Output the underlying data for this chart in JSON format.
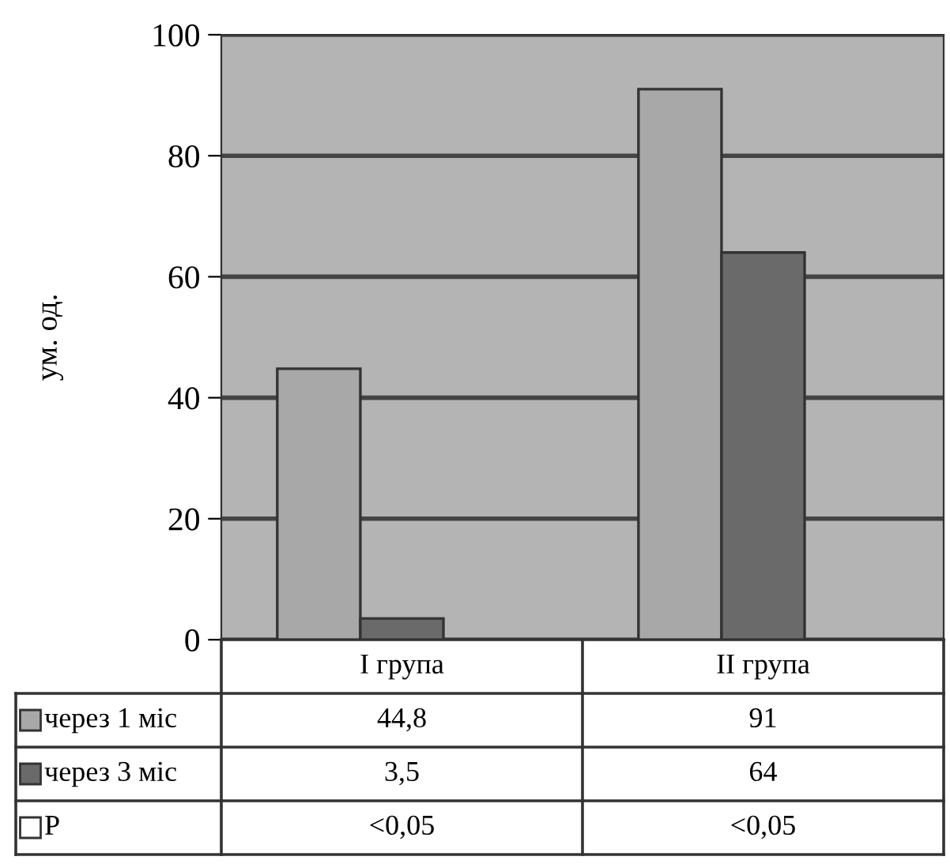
{
  "chart_data": {
    "type": "bar",
    "ylabel": "ум. од.",
    "categories": [
      "I група",
      "II група"
    ],
    "series": [
      {
        "name": "через 1 міс",
        "color": "#a8a8a8",
        "values": [
          44.8,
          91
        ],
        "value_labels": [
          "44,8",
          "91"
        ]
      },
      {
        "name": "через 3 міс",
        "color": "#6a6a6a",
        "values": [
          3.5,
          64
        ],
        "value_labels": [
          "3,5",
          "64"
        ]
      },
      {
        "name": "P",
        "color": "#ffffff",
        "values": [
          null,
          null
        ],
        "value_labels": [
          "<0,05",
          "<0,05"
        ]
      }
    ],
    "ylim": [
      0,
      100
    ],
    "yticks": [
      0,
      20,
      40,
      60,
      80,
      100
    ],
    "grid": "y",
    "legend": "bottom"
  }
}
